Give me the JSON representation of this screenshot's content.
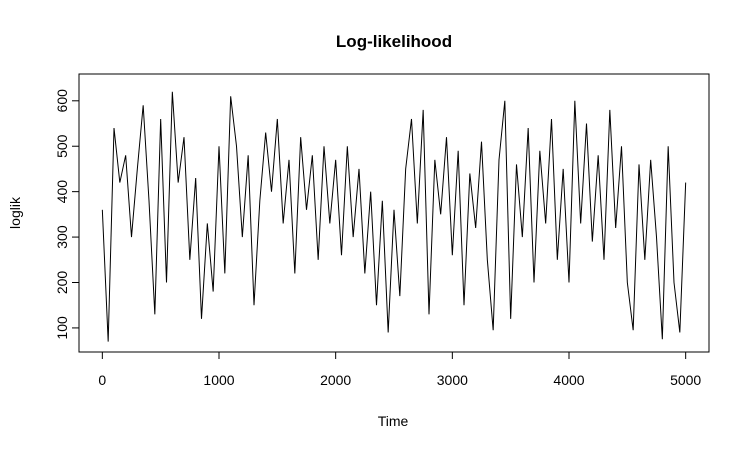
{
  "chart_data": {
    "type": "line",
    "title": "Log-likelihood",
    "x_label": "Time",
    "y_label": "loglik",
    "x": [
      0,
      50,
      100,
      150,
      200,
      250,
      300,
      350,
      400,
      450,
      500,
      550,
      600,
      650,
      700,
      750,
      800,
      850,
      900,
      950,
      1000,
      1050,
      1100,
      1150,
      1200,
      1250,
      1300,
      1350,
      1400,
      1450,
      1500,
      1550,
      1600,
      1650,
      1700,
      1750,
      1800,
      1850,
      1900,
      1950,
      2000,
      2050,
      2100,
      2150,
      2200,
      2250,
      2300,
      2350,
      2400,
      2450,
      2500,
      2550,
      2600,
      2650,
      2700,
      2750,
      2800,
      2850,
      2900,
      2950,
      3000,
      3050,
      3100,
      3150,
      3200,
      3250,
      3300,
      3350,
      3400,
      3450,
      3500,
      3550,
      3600,
      3650,
      3700,
      3750,
      3800,
      3850,
      3900,
      3950,
      4000,
      4050,
      4100,
      4150,
      4200,
      4250,
      4300,
      4350,
      4400,
      4450,
      4500,
      4550,
      4600,
      4650,
      4700,
      4750,
      4800,
      4850,
      4900,
      4950,
      5000
    ],
    "values": [
      360,
      70,
      540,
      420,
      480,
      300,
      450,
      590,
      380,
      130,
      560,
      200,
      620,
      420,
      520,
      250,
      430,
      120,
      330,
      180,
      500,
      220,
      610,
      500,
      300,
      480,
      150,
      380,
      530,
      400,
      560,
      330,
      470,
      220,
      520,
      360,
      480,
      250,
      500,
      330,
      470,
      260,
      500,
      300,
      450,
      220,
      400,
      150,
      380,
      90,
      360,
      170,
      450,
      560,
      330,
      580,
      130,
      470,
      350,
      520,
      260,
      490,
      150,
      440,
      320,
      510,
      250,
      95,
      470,
      600,
      120,
      460,
      300,
      540,
      200,
      490,
      330,
      560,
      250,
      450,
      200,
      600,
      330,
      550,
      290,
      480,
      250,
      580,
      320,
      500,
      200,
      95,
      460,
      250,
      470,
      300,
      75,
      500,
      200,
      90,
      420
    ],
    "color": "#000000",
    "xlim": [
      -200,
      5200
    ],
    "ylim": [
      47,
      659
    ],
    "xticks": [
      0,
      1000,
      2000,
      3000,
      4000,
      5000
    ],
    "yticks": [
      100,
      200,
      300,
      400,
      500,
      600
    ],
    "grid": false
  }
}
